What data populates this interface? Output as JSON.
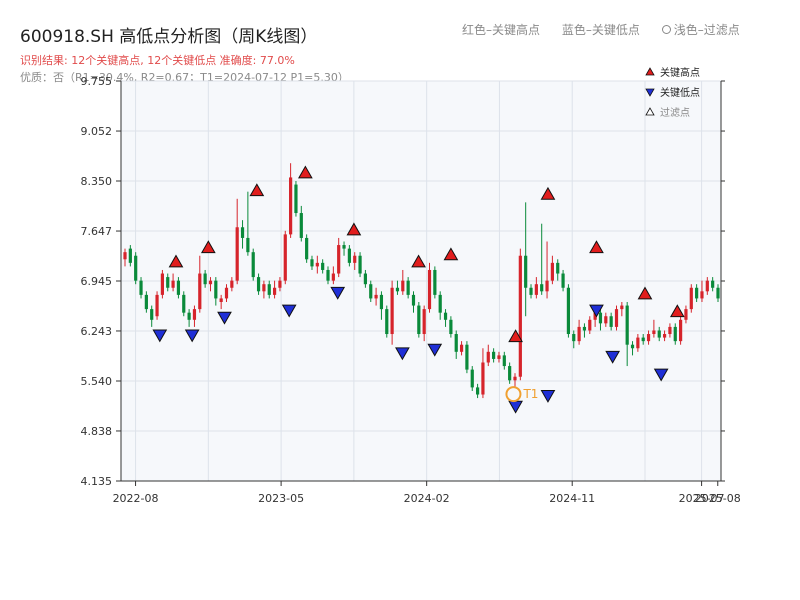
{
  "header": {
    "title": "600918.SH 高低点分析图（周K线图）",
    "result_text": "识别结果: 12个关键高点, 12个关键低点  准确度: 77.0%",
    "quality_text": "优质：否（R1=30.4%, R2=0.67；T1=2024-07-12 P1=5.30）"
  },
  "top_legend": {
    "red_label": "红色–关键高点",
    "blue_label": "蓝色–关键低点",
    "light_label": "浅色–过滤点"
  },
  "colors": {
    "up": "#d6242b",
    "down": "#0a8a3a",
    "high_marker": "#e11d1d",
    "low_marker": "#1f2fd6",
    "t1_marker": "#f0a030",
    "plot_bg": "#f6f8fb",
    "grid": "#dde2ea"
  },
  "chart_data": {
    "type": "candlestick",
    "y_ticks": [
      "4.135",
      "4.838",
      "5.540",
      "6.243",
      "6.945",
      "7.647",
      "8.350",
      "9.052",
      "9.755"
    ],
    "x_ticks": [
      "2022-08",
      "2023-05",
      "2024-02",
      "2024-11",
      "2025-07",
      "2025-08"
    ],
    "ylim": [
      4.135,
      9.755
    ],
    "legend": [
      {
        "name": "关键高点",
        "marker": "up-triangle"
      },
      {
        "name": "关键低点",
        "marker": "down-triangle"
      },
      {
        "name": "过滤点",
        "marker": "up-triangle-outline"
      }
    ],
    "key_highs": [
      {
        "date": "2022-10",
        "price": 7.1
      },
      {
        "date": "2022-12",
        "price": 7.3
      },
      {
        "date": "2023-03",
        "price": 8.1
      },
      {
        "date": "2023-06",
        "price": 8.35
      },
      {
        "date": "2023-09",
        "price": 7.55
      },
      {
        "date": "2024-01",
        "price": 7.1
      },
      {
        "date": "2024-03",
        "price": 7.2
      },
      {
        "date": "2024-07",
        "price": 6.05
      },
      {
        "date": "2024-09",
        "price": 8.05
      },
      {
        "date": "2024-12",
        "price": 7.3
      },
      {
        "date": "2025-03",
        "price": 6.65
      },
      {
        "date": "2025-05",
        "price": 6.4
      }
    ],
    "key_lows": [
      {
        "date": "2022-09",
        "price": 6.3
      },
      {
        "date": "2022-11",
        "price": 6.3
      },
      {
        "date": "2023-01",
        "price": 6.55
      },
      {
        "date": "2023-05",
        "price": 6.65
      },
      {
        "date": "2023-08",
        "price": 6.9
      },
      {
        "date": "2023-12",
        "price": 6.05
      },
      {
        "date": "2024-02",
        "price": 6.1
      },
      {
        "date": "2024-07",
        "price": 5.3
      },
      {
        "date": "2024-09",
        "price": 5.45
      },
      {
        "date": "2024-12",
        "price": 6.65
      },
      {
        "date": "2025-01",
        "price": 6.0
      },
      {
        "date": "2025-04",
        "price": 5.75
      }
    ],
    "t1": {
      "label": "T1",
      "date": "2024-07-12",
      "price": 5.3
    },
    "series": [
      {
        "o": 7.25,
        "c": 7.35,
        "h": 7.4,
        "l": 7.15
      },
      {
        "o": 7.4,
        "c": 7.2,
        "h": 7.45,
        "l": 7.15
      },
      {
        "o": 7.3,
        "c": 6.95,
        "h": 7.35,
        "l": 6.9
      },
      {
        "o": 6.95,
        "c": 6.75,
        "h": 7.0,
        "l": 6.7
      },
      {
        "o": 6.75,
        "c": 6.55,
        "h": 6.8,
        "l": 6.5
      },
      {
        "o": 6.55,
        "c": 6.4,
        "h": 6.6,
        "l": 6.3
      },
      {
        "o": 6.45,
        "c": 6.75,
        "h": 6.8,
        "l": 6.4
      },
      {
        "o": 6.75,
        "c": 7.05,
        "h": 7.1,
        "l": 6.7
      },
      {
        "o": 7.0,
        "c": 6.85,
        "h": 7.05,
        "l": 6.8
      },
      {
        "o": 6.85,
        "c": 6.95,
        "h": 7.05,
        "l": 6.8
      },
      {
        "o": 6.95,
        "c": 6.75,
        "h": 7.0,
        "l": 6.7
      },
      {
        "o": 6.75,
        "c": 6.5,
        "h": 6.8,
        "l": 6.45
      },
      {
        "o": 6.5,
        "c": 6.4,
        "h": 6.55,
        "l": 6.3
      },
      {
        "o": 6.4,
        "c": 6.55,
        "h": 6.6,
        "l": 6.3
      },
      {
        "o": 6.55,
        "c": 7.05,
        "h": 7.3,
        "l": 6.5
      },
      {
        "o": 7.05,
        "c": 6.9,
        "h": 7.1,
        "l": 6.85
      },
      {
        "o": 6.9,
        "c": 6.95,
        "h": 7.0,
        "l": 6.8
      },
      {
        "o": 6.95,
        "c": 6.7,
        "h": 7.0,
        "l": 6.6
      },
      {
        "o": 6.65,
        "c": 6.7,
        "h": 6.75,
        "l": 6.55
      },
      {
        "o": 6.7,
        "c": 6.85,
        "h": 6.9,
        "l": 6.65
      },
      {
        "o": 6.85,
        "c": 6.95,
        "h": 7.0,
        "l": 6.8
      },
      {
        "o": 6.95,
        "c": 7.7,
        "h": 8.1,
        "l": 6.9
      },
      {
        "o": 7.7,
        "c": 7.55,
        "h": 7.8,
        "l": 7.4
      },
      {
        "o": 7.55,
        "c": 7.35,
        "h": 8.2,
        "l": 7.3
      },
      {
        "o": 7.35,
        "c": 7.0,
        "h": 7.4,
        "l": 6.95
      },
      {
        "o": 7.0,
        "c": 6.8,
        "h": 7.05,
        "l": 6.75
      },
      {
        "o": 6.8,
        "c": 6.9,
        "h": 6.95,
        "l": 6.7
      },
      {
        "o": 6.9,
        "c": 6.75,
        "h": 6.95,
        "l": 6.7
      },
      {
        "o": 6.75,
        "c": 6.85,
        "h": 6.95,
        "l": 6.7
      },
      {
        "o": 6.85,
        "c": 6.95,
        "h": 7.0,
        "l": 6.8
      },
      {
        "o": 6.95,
        "c": 7.6,
        "h": 7.65,
        "l": 6.9
      },
      {
        "o": 7.6,
        "c": 8.4,
        "h": 8.6,
        "l": 7.55
      },
      {
        "o": 8.3,
        "c": 7.9,
        "h": 8.35,
        "l": 7.85
      },
      {
        "o": 7.9,
        "c": 7.55,
        "h": 8.0,
        "l": 7.5
      },
      {
        "o": 7.55,
        "c": 7.25,
        "h": 7.6,
        "l": 7.2
      },
      {
        "o": 7.25,
        "c": 7.15,
        "h": 7.3,
        "l": 7.1
      },
      {
        "o": 7.15,
        "c": 7.2,
        "h": 7.3,
        "l": 7.05
      },
      {
        "o": 7.2,
        "c": 7.1,
        "h": 7.25,
        "l": 7.05
      },
      {
        "o": 7.1,
        "c": 6.95,
        "h": 7.15,
        "l": 6.9
      },
      {
        "o": 6.95,
        "c": 7.05,
        "h": 7.15,
        "l": 6.9
      },
      {
        "o": 7.05,
        "c": 7.45,
        "h": 7.55,
        "l": 7.0
      },
      {
        "o": 7.45,
        "c": 7.4,
        "h": 7.5,
        "l": 7.3
      },
      {
        "o": 7.4,
        "c": 7.2,
        "h": 7.45,
        "l": 7.15
      },
      {
        "o": 7.2,
        "c": 7.3,
        "h": 7.35,
        "l": 7.1
      },
      {
        "o": 7.3,
        "c": 7.05,
        "h": 7.35,
        "l": 7.0
      },
      {
        "o": 7.05,
        "c": 6.9,
        "h": 7.1,
        "l": 6.85
      },
      {
        "o": 6.9,
        "c": 6.7,
        "h": 6.95,
        "l": 6.65
      },
      {
        "o": 6.7,
        "c": 6.75,
        "h": 6.85,
        "l": 6.6
      },
      {
        "o": 6.75,
        "c": 6.55,
        "h": 6.8,
        "l": 6.4
      },
      {
        "o": 6.55,
        "c": 6.2,
        "h": 6.6,
        "l": 6.15
      },
      {
        "o": 6.2,
        "c": 6.85,
        "h": 6.95,
        "l": 6.05
      },
      {
        "o": 6.85,
        "c": 6.8,
        "h": 6.95,
        "l": 6.75
      },
      {
        "o": 6.8,
        "c": 6.95,
        "h": 7.1,
        "l": 6.75
      },
      {
        "o": 6.95,
        "c": 6.75,
        "h": 7.0,
        "l": 6.7
      },
      {
        "o": 6.75,
        "c": 6.6,
        "h": 6.8,
        "l": 6.5
      },
      {
        "o": 6.6,
        "c": 6.2,
        "h": 6.65,
        "l": 6.15
      },
      {
        "o": 6.2,
        "c": 6.55,
        "h": 6.6,
        "l": 6.1
      },
      {
        "o": 6.55,
        "c": 7.1,
        "h": 7.2,
        "l": 6.5
      },
      {
        "o": 7.1,
        "c": 6.75,
        "h": 7.15,
        "l": 6.7
      },
      {
        "o": 6.75,
        "c": 6.5,
        "h": 6.8,
        "l": 6.4
      },
      {
        "o": 6.5,
        "c": 6.4,
        "h": 6.55,
        "l": 6.3
      },
      {
        "o": 6.4,
        "c": 6.2,
        "h": 6.45,
        "l": 6.15
      },
      {
        "o": 6.2,
        "c": 5.95,
        "h": 6.25,
        "l": 5.85
      },
      {
        "o": 5.95,
        "c": 6.05,
        "h": 6.1,
        "l": 5.9
      },
      {
        "o": 6.05,
        "c": 5.7,
        "h": 6.1,
        "l": 5.65
      },
      {
        "o": 5.7,
        "c": 5.45,
        "h": 5.75,
        "l": 5.4
      },
      {
        "o": 5.45,
        "c": 5.35,
        "h": 5.5,
        "l": 5.3
      },
      {
        "o": 5.35,
        "c": 5.8,
        "h": 6.0,
        "l": 5.3
      },
      {
        "o": 5.8,
        "c": 5.95,
        "h": 6.05,
        "l": 5.75
      },
      {
        "o": 5.95,
        "c": 5.85,
        "h": 6.0,
        "l": 5.8
      },
      {
        "o": 5.85,
        "c": 5.9,
        "h": 5.95,
        "l": 5.8
      },
      {
        "o": 5.9,
        "c": 5.75,
        "h": 5.95,
        "l": 5.7
      },
      {
        "o": 5.75,
        "c": 5.55,
        "h": 5.8,
        "l": 5.5
      },
      {
        "o": 5.55,
        "c": 5.6,
        "h": 5.65,
        "l": 5.45
      },
      {
        "o": 5.6,
        "c": 7.3,
        "h": 7.4,
        "l": 5.55
      },
      {
        "o": 7.3,
        "c": 6.85,
        "h": 8.05,
        "l": 6.45
      },
      {
        "o": 6.85,
        "c": 6.75,
        "h": 6.9,
        "l": 6.7
      },
      {
        "o": 6.75,
        "c": 6.9,
        "h": 7.0,
        "l": 6.7
      },
      {
        "o": 6.9,
        "c": 6.8,
        "h": 7.75,
        "l": 6.75
      },
      {
        "o": 6.8,
        "c": 6.95,
        "h": 7.5,
        "l": 6.7
      },
      {
        "o": 6.95,
        "c": 7.2,
        "h": 7.3,
        "l": 6.9
      },
      {
        "o": 7.2,
        "c": 7.05,
        "h": 7.25,
        "l": 6.95
      },
      {
        "o": 7.05,
        "c": 6.85,
        "h": 7.1,
        "l": 6.8
      },
      {
        "o": 6.85,
        "c": 6.2,
        "h": 6.9,
        "l": 6.15
      },
      {
        "o": 6.2,
        "c": 6.1,
        "h": 6.25,
        "l": 6.0
      },
      {
        "o": 6.1,
        "c": 6.3,
        "h": 6.4,
        "l": 6.05
      },
      {
        "o": 6.3,
        "c": 6.25,
        "h": 6.35,
        "l": 6.15
      },
      {
        "o": 6.25,
        "c": 6.4,
        "h": 6.45,
        "l": 6.2
      },
      {
        "o": 6.4,
        "c": 6.5,
        "h": 6.55,
        "l": 6.3
      },
      {
        "o": 6.5,
        "c": 6.35,
        "h": 6.55,
        "l": 6.25
      },
      {
        "o": 6.35,
        "c": 6.45,
        "h": 6.5,
        "l": 6.3
      },
      {
        "o": 6.45,
        "c": 6.3,
        "h": 6.5,
        "l": 6.25
      },
      {
        "o": 6.3,
        "c": 6.55,
        "h": 6.6,
        "l": 6.25
      },
      {
        "o": 6.55,
        "c": 6.6,
        "h": 6.65,
        "l": 6.45
      },
      {
        "o": 6.6,
        "c": 6.05,
        "h": 6.65,
        "l": 5.75
      },
      {
        "o": 6.05,
        "c": 6.0,
        "h": 6.1,
        "l": 5.9
      },
      {
        "o": 6.0,
        "c": 6.15,
        "h": 6.2,
        "l": 5.95
      },
      {
        "o": 6.15,
        "c": 6.1,
        "h": 6.2,
        "l": 6.05
      },
      {
        "o": 6.1,
        "c": 6.2,
        "h": 6.25,
        "l": 6.05
      },
      {
        "o": 6.2,
        "c": 6.25,
        "h": 6.4,
        "l": 6.15
      },
      {
        "o": 6.25,
        "c": 6.15,
        "h": 6.3,
        "l": 6.1
      },
      {
        "o": 6.15,
        "c": 6.2,
        "h": 6.25,
        "l": 6.1
      },
      {
        "o": 6.2,
        "c": 6.3,
        "h": 6.35,
        "l": 6.15
      },
      {
        "o": 6.3,
        "c": 6.1,
        "h": 6.35,
        "l": 6.05
      },
      {
        "o": 6.1,
        "c": 6.4,
        "h": 6.45,
        "l": 6.05
      },
      {
        "o": 6.4,
        "c": 6.55,
        "h": 6.6,
        "l": 6.35
      },
      {
        "o": 6.55,
        "c": 6.85,
        "h": 6.9,
        "l": 6.5
      },
      {
        "o": 6.85,
        "c": 6.7,
        "h": 6.9,
        "l": 6.65
      },
      {
        "o": 6.7,
        "c": 6.8,
        "h": 6.95,
        "l": 6.65
      },
      {
        "o": 6.8,
        "c": 6.95,
        "h": 7.0,
        "l": 6.75
      },
      {
        "o": 6.95,
        "c": 6.85,
        "h": 7.0,
        "l": 6.8
      },
      {
        "o": 6.85,
        "c": 6.7,
        "h": 6.9,
        "l": 6.65
      }
    ]
  }
}
